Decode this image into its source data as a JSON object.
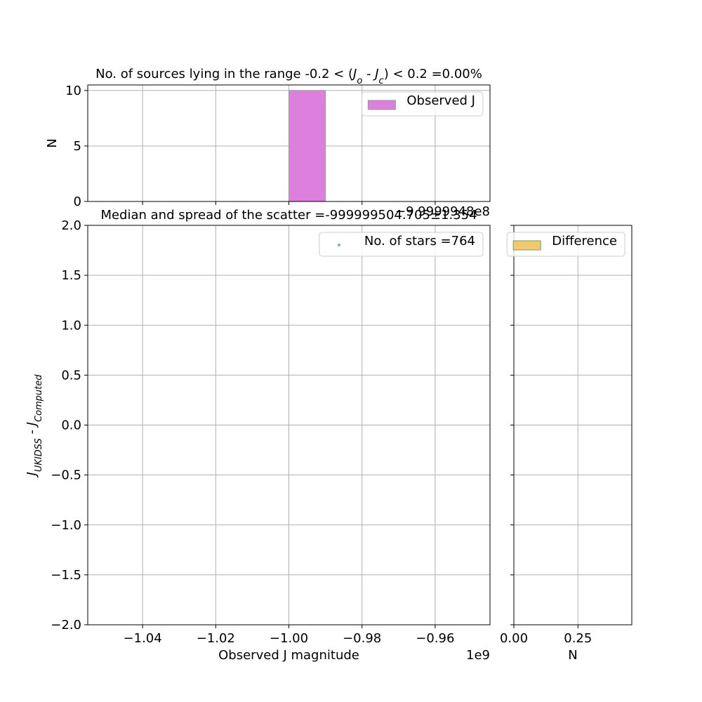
{
  "chart_data": [
    {
      "type": "histogram",
      "title_parts": [
        {
          "text": "No. of sources lying in the range -0.2 < (",
          "style": "normal"
        },
        {
          "text": "J",
          "style": "italic"
        },
        {
          "text": "o",
          "style": "sub"
        },
        {
          "text": " - ",
          "style": "normal"
        },
        {
          "text": "J",
          "style": "italic"
        },
        {
          "text": "c",
          "style": "sub"
        },
        {
          "text": ") < 0.2 =0.00%",
          "style": "normal"
        }
      ],
      "ylabel": "N",
      "bins": [
        -1.0,
        -0.99
      ],
      "series": [
        {
          "name": "Observed J",
          "color": "#dd7fdd",
          "edgecolor": "#999999",
          "values": [
            10
          ]
        }
      ],
      "xlim": [
        -1.055,
        -0.945
      ],
      "xticks": [
        -1.04,
        -1.02,
        -1.0,
        -0.98,
        -0.96
      ],
      "xtick_labels_visible": false,
      "x_offset_label": "−9.9999948e8",
      "ylim": [
        0,
        10.5
      ],
      "yticks": [
        0,
        5,
        10
      ],
      "grid": true,
      "legend": "upper right"
    },
    {
      "type": "scatter",
      "title": "Median and spread of the scatter =-999999504.705±1.354",
      "xlabel": "Observed J magnitude",
      "ylabel_parts": [
        {
          "text": "J",
          "style": "italic"
        },
        {
          "text": "UKIDSS",
          "style": "sub"
        },
        {
          "text": " - ",
          "style": "normal"
        },
        {
          "text": "J",
          "style": "italic"
        },
        {
          "text": "Computed",
          "style": "sub"
        }
      ],
      "series": [
        {
          "name": "No. of stars =764",
          "color": "#7fbf7f",
          "x": [],
          "values": []
        }
      ],
      "xlim": [
        -1.055,
        -0.945
      ],
      "xticks": [
        {
          "value": -1.04,
          "label": "−1.04"
        },
        {
          "value": -1.02,
          "label": "−1.02"
        },
        {
          "value": -1.0,
          "label": "−1.00"
        },
        {
          "value": -0.98,
          "label": "−0.98"
        },
        {
          "value": -0.96,
          "label": "−0.96"
        }
      ],
      "x_offset_label": "1e9",
      "ylim": [
        -2,
        2
      ],
      "yticks": [
        {
          "value": -2,
          "label": "−2.0"
        },
        {
          "value": -1.5,
          "label": "−1.5"
        },
        {
          "value": -1,
          "label": "−1.0"
        },
        {
          "value": -0.5,
          "label": "−0.5"
        },
        {
          "value": 0,
          "label": "0.0"
        },
        0.5,
        {
          "value": 1,
          "label": "1.0"
        },
        1.5,
        {
          "value": 2,
          "label": "2.0"
        }
      ],
      "grid": true,
      "legend": "upper right"
    },
    {
      "type": "barh",
      "xlabel": "N",
      "series": [
        {
          "name": "Difference",
          "color": "#f5c870",
          "edgecolor": "#6aa84f",
          "values": []
        }
      ],
      "xlim": [
        0,
        0.46
      ],
      "xticks": [
        {
          "value": 0,
          "label": "0.00"
        },
        0.25
      ],
      "ylim": [
        -2,
        2
      ],
      "yticks": [
        -2,
        -1.5,
        -1,
        -0.5,
        0,
        0.5,
        1,
        1.5,
        2
      ],
      "ytick_labels_visible": false,
      "grid": true,
      "legend": "upper right"
    }
  ]
}
